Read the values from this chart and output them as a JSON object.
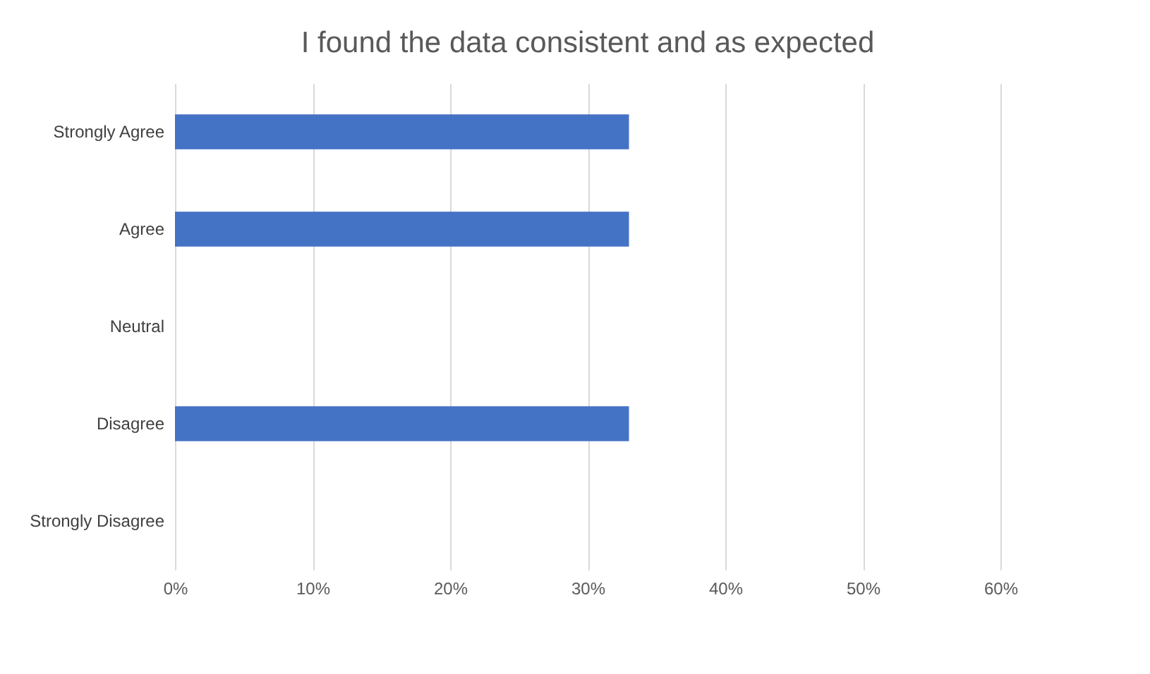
{
  "chart_data": {
    "type": "bar",
    "orientation": "horizontal",
    "title": "I found the data consistent and as expected",
    "categories": [
      "Strongly Agree",
      "Agree",
      "Neutral",
      "Disagree",
      "Strongly Disagree"
    ],
    "values": [
      33,
      33,
      0,
      33,
      0
    ],
    "color": "#4472c4",
    "xlim": [
      0,
      60
    ],
    "xticks": [
      {
        "value": 0,
        "label": "0%"
      },
      {
        "value": 10,
        "label": "10%"
      },
      {
        "value": 20,
        "label": "20%"
      },
      {
        "value": 30,
        "label": "30%"
      },
      {
        "value": 40,
        "label": "40%"
      },
      {
        "value": 50,
        "label": "50%"
      },
      {
        "value": 60,
        "label": "60%"
      }
    ],
    "grid": "x"
  }
}
